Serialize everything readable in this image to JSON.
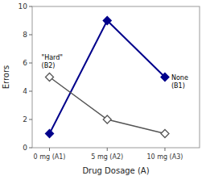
{
  "chart_data": {
    "type": "line",
    "title": "",
    "x_label": "Drug Dosage (A)",
    "y_label": "Errors",
    "x": [
      0,
      1,
      2
    ],
    "xlim": [
      -0.3,
      2.6
    ],
    "xticks": [
      {
        "value": 0,
        "label": "0 mg (A1)"
      },
      {
        "value": 1,
        "label": "5 mg (A2)"
      },
      {
        "value": 2,
        "label": "10 mg (A3)"
      }
    ],
    "ylim": [
      0,
      10
    ],
    "yticks": [
      0,
      2,
      4,
      6,
      8,
      10
    ],
    "grid": false,
    "series": [
      {
        "color": "#00008B",
        "marker": "diamond",
        "values": [
          1,
          9,
          5
        ]
      },
      {
        "color": "#555555",
        "marker": "open-diamond",
        "values": [
          5,
          2,
          1
        ]
      }
    ],
    "annotations": [
      {
        "text": "\"Hard\"\n(B2)",
        "x": 0,
        "y": 5
      },
      {
        "text": "None\n(B1)",
        "x": 2,
        "y": 5
      }
    ]
  }
}
